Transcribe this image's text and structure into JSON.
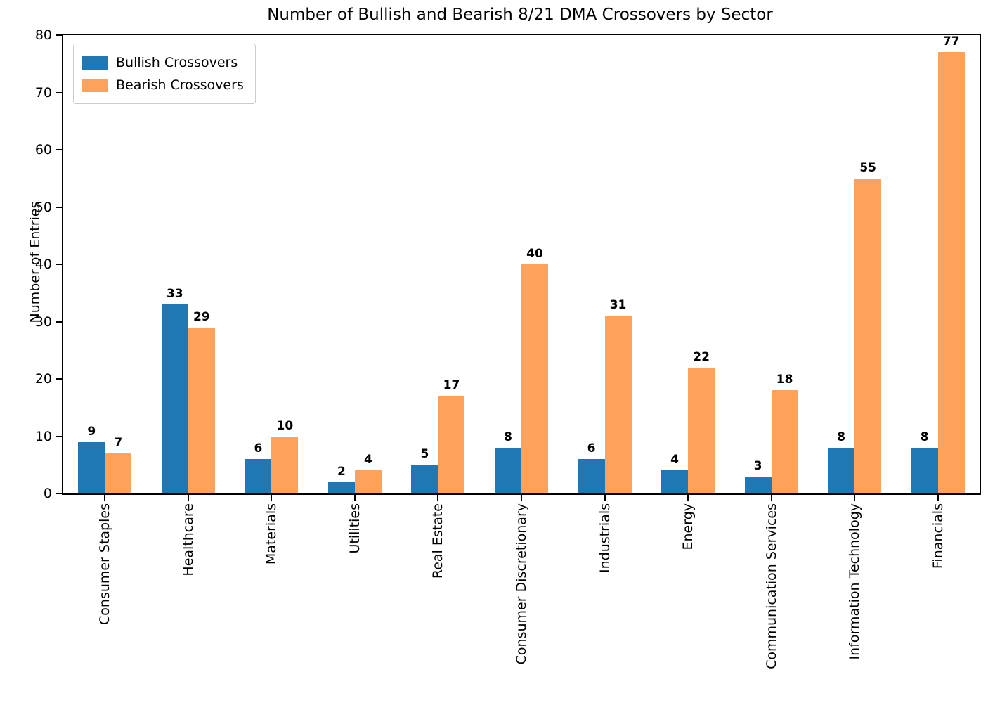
{
  "figure": {
    "title": "Number of Bullish and Bearish 8/21 DMA Crossovers by Sector",
    "ylabel": "Number of Entries"
  },
  "chart_data": {
    "type": "bar",
    "title": "Number of Bullish and Bearish 8/21 DMA Crossovers by Sector",
    "xlabel": "",
    "ylabel": "Number of Entries",
    "ylim": [
      0,
      80
    ],
    "yticks": [
      0,
      10,
      20,
      30,
      40,
      50,
      60,
      70,
      80
    ],
    "grid": false,
    "legend_position": "upper left",
    "value_labels": true,
    "categories": [
      "Consumer Staples",
      "Healthcare",
      "Materials",
      "Utilities",
      "Real Estate",
      "Consumer Discretionary",
      "Industrials",
      "Energy",
      "Communication Services",
      "Information Technology",
      "Financials"
    ],
    "series": [
      {
        "name": "Bullish Crossovers",
        "color": "#1f77b4",
        "values": [
          9,
          33,
          6,
          2,
          5,
          8,
          6,
          4,
          3,
          8,
          8
        ]
      },
      {
        "name": "Bearish Crossovers",
        "color": "#ffa35c",
        "values": [
          7,
          29,
          10,
          4,
          17,
          40,
          31,
          22,
          18,
          55,
          77
        ]
      }
    ]
  }
}
